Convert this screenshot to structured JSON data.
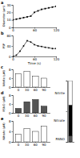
{
  "chart_data": [
    {
      "type": "line",
      "title": "a",
      "ylabel": "Diameter (µm)",
      "x": [
        0,
        10,
        20,
        30,
        40,
        50,
        60,
        70,
        80,
        90,
        100,
        110,
        120
      ],
      "values": [
        10,
        11,
        12,
        13,
        14,
        15,
        20,
        22,
        24,
        25,
        26,
        27,
        28
      ],
      "color": "#000000",
      "marker": "square",
      "xlim": [
        0,
        120
      ],
      "xticks": [
        0,
        60,
        120
      ],
      "ylim": [
        0,
        30
      ],
      "yticks": [
        0,
        10,
        20,
        30
      ]
    },
    {
      "type": "line",
      "title": "b",
      "ylabel": "PSP",
      "xlabel": "Time (s)",
      "x": [
        0,
        10,
        20,
        30,
        40,
        50,
        60,
        70,
        80,
        90,
        100,
        110,
        120
      ],
      "values": [
        0,
        5,
        20,
        40,
        60,
        55,
        45,
        40,
        38,
        35,
        33,
        30,
        30
      ],
      "color": "#000000",
      "marker": "circle",
      "xlim": [
        0,
        120
      ],
      "xticks": [
        0,
        60,
        120
      ],
      "ylim": [
        0,
        80
      ],
      "yticks": [
        0,
        40,
        80
      ]
    },
    {
      "type": "bar",
      "title": "c",
      "ylabel": "Nitrite (µM)",
      "categories": [
        "0",
        "30",
        "60",
        "90"
      ],
      "values": [
        6,
        7,
        5,
        4
      ],
      "color": "#ffffff",
      "ylim": [
        0,
        8
      ],
      "yticks": [
        0,
        4,
        8
      ]
    },
    {
      "type": "bar",
      "title": "d",
      "ylabel": "RSNO (µM)",
      "categories": [
        "0",
        "30",
        "60",
        "90"
      ],
      "values": [
        2,
        5,
        6,
        3
      ],
      "color": "#555555",
      "ylim": [
        0,
        8
      ],
      "yticks": [
        0,
        4,
        8
      ]
    },
    {
      "type": "bar",
      "title": "e",
      "ylabel": "Nitrate (µM)",
      "categories": [
        "0",
        "30",
        "60",
        "90"
      ],
      "values": [
        3,
        5,
        4,
        6
      ],
      "color": "#ffffff",
      "ylim": [
        0,
        8
      ],
      "yticks": [
        0,
        4,
        8
      ]
    },
    {
      "type": "bar",
      "stacked": true,
      "legend": "left",
      "tick_labels": false,
      "categories": [
        null
      ],
      "series": [
        {
          "name": "RSNO",
          "color": "#555555",
          "values": [
            10
          ]
        },
        {
          "name": "Nitrate",
          "color": "#000000",
          "values": [
            50
          ]
        },
        {
          "name": "Nitrite",
          "color": "#ffffff",
          "values": [
            40
          ]
        }
      ],
      "ylim": [
        0,
        100
      ],
      "yticks": [
        0,
        50,
        100
      ]
    }
  ]
}
